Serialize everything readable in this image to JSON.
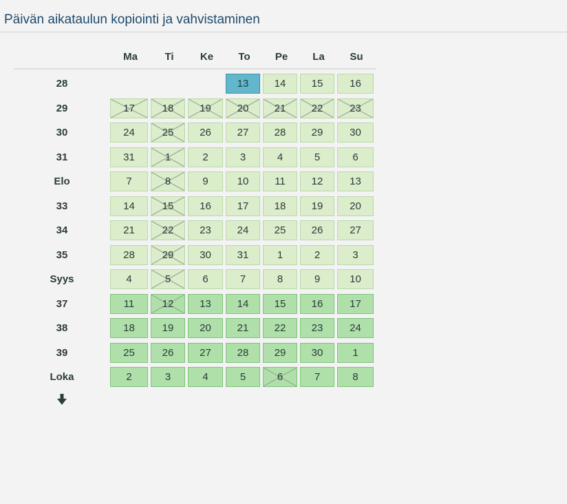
{
  "title": "Päivän aikataulun kopiointi ja vahvistaminen",
  "days": [
    "Ma",
    "Ti",
    "Ke",
    "To",
    "Pe",
    "La",
    "Su"
  ],
  "colors": {
    "light": "#dcedcb",
    "dark": "#afe0aa",
    "selected": "#62b7cd"
  },
  "more_icon": "arrow-down-icon",
  "weeks": [
    {
      "label": "28",
      "days": [
        {
          "d": "",
          "s": "empty"
        },
        {
          "d": "",
          "s": "empty"
        },
        {
          "d": "",
          "s": "empty"
        },
        {
          "d": "13",
          "s": "selected"
        },
        {
          "d": "14",
          "s": "light"
        },
        {
          "d": "15",
          "s": "light"
        },
        {
          "d": "16",
          "s": "light"
        }
      ]
    },
    {
      "label": "29",
      "days": [
        {
          "d": "17",
          "s": "light",
          "x": true
        },
        {
          "d": "18",
          "s": "light",
          "x": true
        },
        {
          "d": "19",
          "s": "light",
          "x": true
        },
        {
          "d": "20",
          "s": "light",
          "x": true
        },
        {
          "d": "21",
          "s": "light",
          "x": true
        },
        {
          "d": "22",
          "s": "light",
          "x": true
        },
        {
          "d": "23",
          "s": "light",
          "x": true
        }
      ]
    },
    {
      "label": "30",
      "days": [
        {
          "d": "24",
          "s": "light"
        },
        {
          "d": "25",
          "s": "light",
          "x": true
        },
        {
          "d": "26",
          "s": "light"
        },
        {
          "d": "27",
          "s": "light"
        },
        {
          "d": "28",
          "s": "light"
        },
        {
          "d": "29",
          "s": "light"
        },
        {
          "d": "30",
          "s": "light"
        }
      ]
    },
    {
      "label": "31",
      "days": [
        {
          "d": "31",
          "s": "light"
        },
        {
          "d": "1",
          "s": "light",
          "x": true
        },
        {
          "d": "2",
          "s": "light"
        },
        {
          "d": "3",
          "s": "light"
        },
        {
          "d": "4",
          "s": "light"
        },
        {
          "d": "5",
          "s": "light"
        },
        {
          "d": "6",
          "s": "light"
        }
      ]
    },
    {
      "label": "Elo",
      "days": [
        {
          "d": "7",
          "s": "light"
        },
        {
          "d": "8",
          "s": "light",
          "x": true
        },
        {
          "d": "9",
          "s": "light"
        },
        {
          "d": "10",
          "s": "light"
        },
        {
          "d": "11",
          "s": "light"
        },
        {
          "d": "12",
          "s": "light"
        },
        {
          "d": "13",
          "s": "light"
        }
      ]
    },
    {
      "label": "33",
      "days": [
        {
          "d": "14",
          "s": "light"
        },
        {
          "d": "15",
          "s": "light",
          "x": true
        },
        {
          "d": "16",
          "s": "light"
        },
        {
          "d": "17",
          "s": "light"
        },
        {
          "d": "18",
          "s": "light"
        },
        {
          "d": "19",
          "s": "light"
        },
        {
          "d": "20",
          "s": "light"
        }
      ]
    },
    {
      "label": "34",
      "days": [
        {
          "d": "21",
          "s": "light"
        },
        {
          "d": "22",
          "s": "light",
          "x": true
        },
        {
          "d": "23",
          "s": "light"
        },
        {
          "d": "24",
          "s": "light"
        },
        {
          "d": "25",
          "s": "light"
        },
        {
          "d": "26",
          "s": "light"
        },
        {
          "d": "27",
          "s": "light"
        }
      ]
    },
    {
      "label": "35",
      "days": [
        {
          "d": "28",
          "s": "light"
        },
        {
          "d": "29",
          "s": "light",
          "x": true
        },
        {
          "d": "30",
          "s": "light"
        },
        {
          "d": "31",
          "s": "light"
        },
        {
          "d": "1",
          "s": "light"
        },
        {
          "d": "2",
          "s": "light"
        },
        {
          "d": "3",
          "s": "light"
        }
      ]
    },
    {
      "label": "Syys",
      "days": [
        {
          "d": "4",
          "s": "light"
        },
        {
          "d": "5",
          "s": "light",
          "x": true
        },
        {
          "d": "6",
          "s": "light"
        },
        {
          "d": "7",
          "s": "light"
        },
        {
          "d": "8",
          "s": "light"
        },
        {
          "d": "9",
          "s": "light"
        },
        {
          "d": "10",
          "s": "light"
        }
      ]
    },
    {
      "label": "37",
      "days": [
        {
          "d": "11",
          "s": "dark"
        },
        {
          "d": "12",
          "s": "dark",
          "x": true
        },
        {
          "d": "13",
          "s": "dark"
        },
        {
          "d": "14",
          "s": "dark"
        },
        {
          "d": "15",
          "s": "dark"
        },
        {
          "d": "16",
          "s": "dark"
        },
        {
          "d": "17",
          "s": "dark"
        }
      ]
    },
    {
      "label": "38",
      "days": [
        {
          "d": "18",
          "s": "dark"
        },
        {
          "d": "19",
          "s": "dark"
        },
        {
          "d": "20",
          "s": "dark"
        },
        {
          "d": "21",
          "s": "dark"
        },
        {
          "d": "22",
          "s": "dark"
        },
        {
          "d": "23",
          "s": "dark"
        },
        {
          "d": "24",
          "s": "dark"
        }
      ]
    },
    {
      "label": "39",
      "days": [
        {
          "d": "25",
          "s": "dark"
        },
        {
          "d": "26",
          "s": "dark"
        },
        {
          "d": "27",
          "s": "dark"
        },
        {
          "d": "28",
          "s": "dark"
        },
        {
          "d": "29",
          "s": "dark"
        },
        {
          "d": "30",
          "s": "dark"
        },
        {
          "d": "1",
          "s": "dark"
        }
      ]
    },
    {
      "label": "Loka",
      "days": [
        {
          "d": "2",
          "s": "dark"
        },
        {
          "d": "3",
          "s": "dark"
        },
        {
          "d": "4",
          "s": "dark"
        },
        {
          "d": "5",
          "s": "dark"
        },
        {
          "d": "6",
          "s": "dark",
          "x": true
        },
        {
          "d": "7",
          "s": "dark"
        },
        {
          "d": "8",
          "s": "dark"
        }
      ]
    }
  ]
}
